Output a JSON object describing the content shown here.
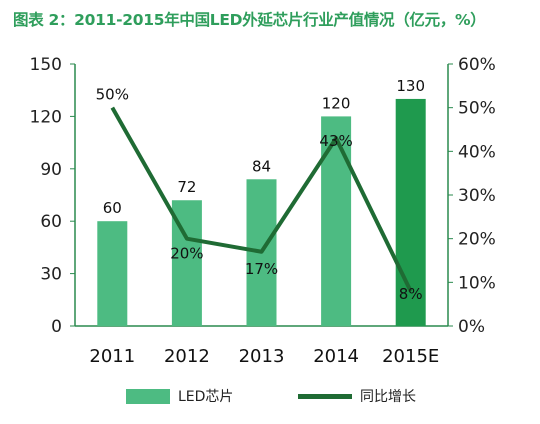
{
  "title": "图表 2：2011-2015年中国LED外延芯片行业产值情况（亿元，%）",
  "chart_data": {
    "type": "bar",
    "categories": [
      "2011",
      "2012",
      "2013",
      "2014",
      "2015E"
    ],
    "series": [
      {
        "name": "LED芯片",
        "type": "bar",
        "axis": "left",
        "values": [
          60,
          72,
          84,
          120,
          130
        ],
        "labels": [
          "60",
          "72",
          "84",
          "120",
          "130"
        ]
      },
      {
        "name": "同比增长",
        "type": "line",
        "axis": "right",
        "values": [
          50,
          20,
          17,
          43,
          8
        ],
        "labels": [
          "50%",
          "20%",
          "17%",
          "43%",
          "8%"
        ]
      }
    ],
    "left_axis": {
      "ticks": [
        "0",
        "30",
        "60",
        "90",
        "120",
        "150"
      ],
      "range": [
        0,
        150
      ]
    },
    "right_axis": {
      "ticks": [
        "0%",
        "10%",
        "20%",
        "30%",
        "40%",
        "50%",
        "60%"
      ],
      "range": [
        0,
        60
      ]
    },
    "grid": false,
    "legend_position": "bottom",
    "colors": {
      "bar": "#4dbb82",
      "bar_highlight": "#1f9a4e",
      "line": "#1f6b34",
      "axis": "#2a8a4e",
      "title": "#2f9e5c"
    }
  }
}
